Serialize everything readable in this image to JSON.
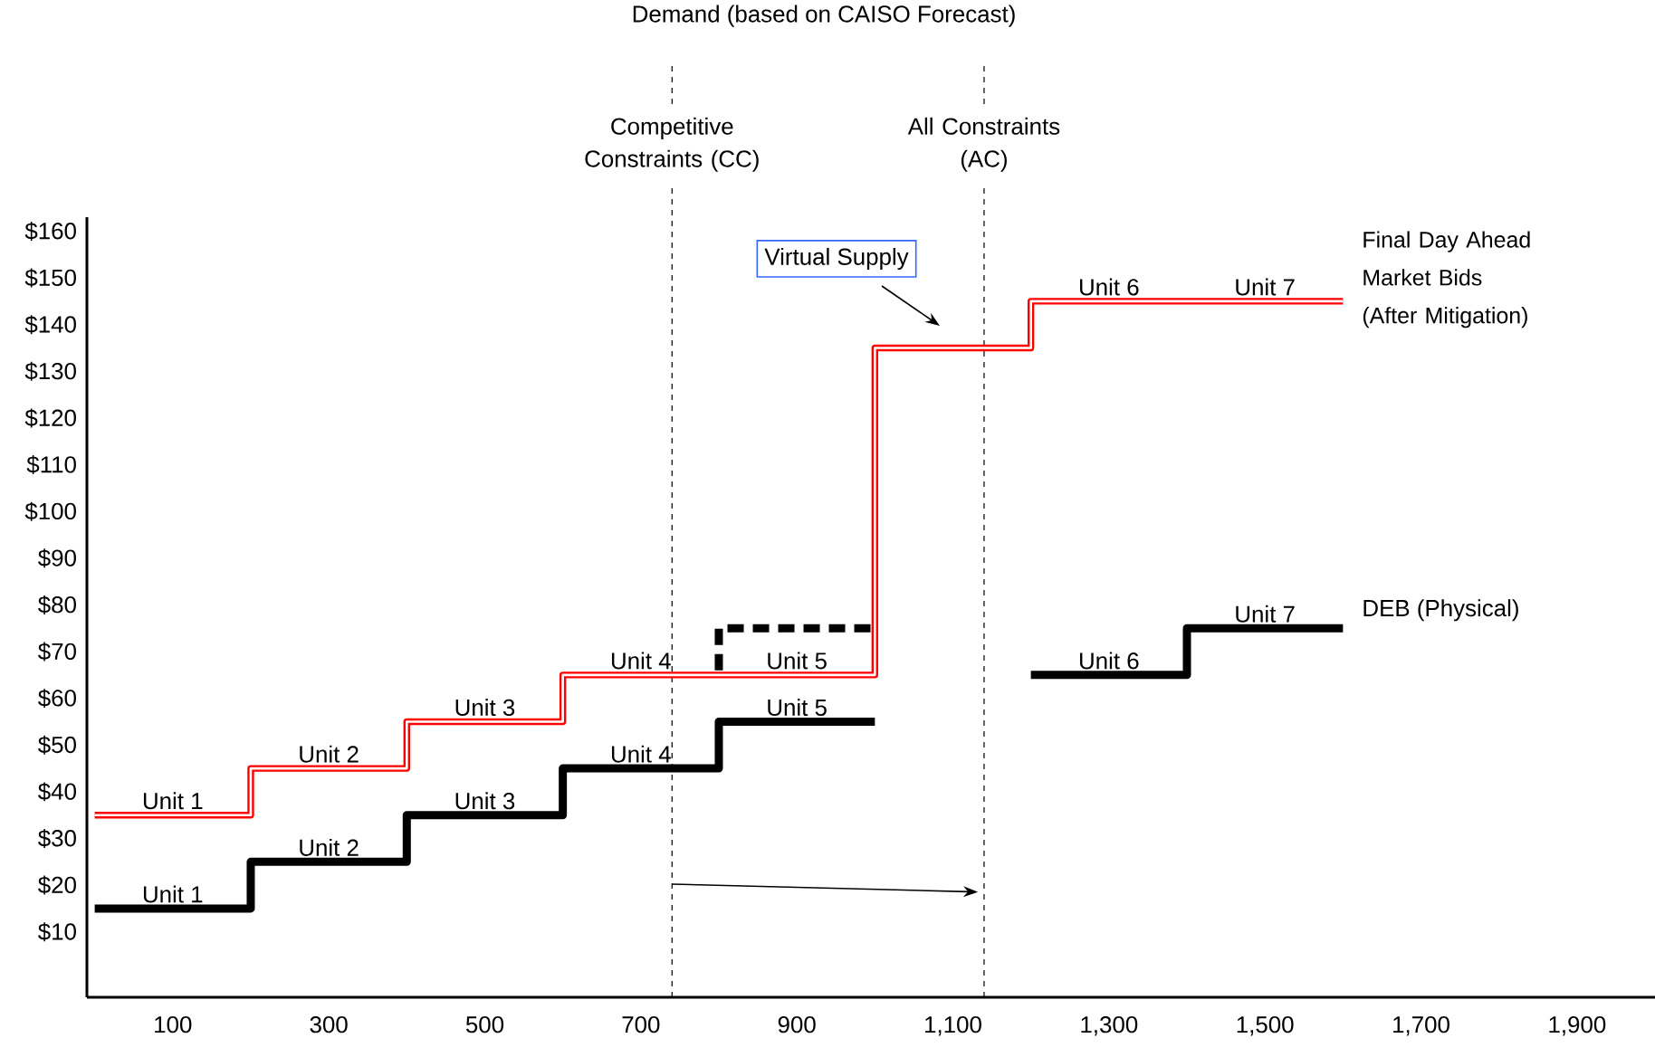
{
  "chart_data": {
    "type": "step",
    "title": "Demand (based on CAISO Forecast)",
    "xlim": [
      -10,
      2000
    ],
    "ylim": [
      -4,
      163
    ],
    "xticks": [
      100,
      300,
      500,
      700,
      900,
      {
        "value": 1100,
        "label": "1,100"
      },
      {
        "value": 1300,
        "label": "1,300"
      },
      {
        "value": 1500,
        "label": "1,500"
      },
      {
        "value": 1700,
        "label": "1,700"
      },
      {
        "value": 1900,
        "label": "1,900"
      }
    ],
    "yticks": [
      {
        "value": 10,
        "label": "$10"
      },
      {
        "value": 20,
        "label": "$20"
      },
      {
        "value": 30,
        "label": "$30"
      },
      {
        "value": 40,
        "label": "$40"
      },
      {
        "value": 50,
        "label": "$50"
      },
      {
        "value": 60,
        "label": "$60"
      },
      {
        "value": 70,
        "label": "$70"
      },
      {
        "value": 80,
        "label": "$80"
      },
      {
        "value": 90,
        "label": "$90"
      },
      {
        "value": 100,
        "label": "$100"
      },
      {
        "value": 110,
        "label": "$110"
      },
      {
        "value": 120,
        "label": "$120"
      },
      {
        "value": 130,
        "label": "$130"
      },
      {
        "value": 140,
        "label": "$140"
      },
      {
        "value": 150,
        "label": "$150"
      },
      {
        "value": 160,
        "label": "$160"
      }
    ],
    "series": [
      {
        "name": "Final Day Ahead Market Bids (After Mitigation)",
        "color": "#ff0000",
        "x": [
          0,
          200,
          400,
          600,
          800,
          1000,
          1200,
          1600
        ],
        "values": [
          35,
          45,
          55,
          65,
          65,
          135,
          145,
          145
        ]
      },
      {
        "color": "#000000",
        "x": [
          0,
          200,
          400,
          600,
          800,
          1000
        ],
        "values": [
          15,
          25,
          35,
          45,
          55,
          55
        ]
      },
      {
        "name": "DEB (Physical)",
        "color": "#000000",
        "x": [
          1200,
          1400,
          1600
        ],
        "values": [
          65,
          75,
          75
        ]
      },
      {
        "color": "#000000",
        "line_style": "dashed",
        "x": [
          800,
          800,
          1000
        ],
        "values": [
          66,
          75,
          75
        ]
      }
    ],
    "ref_lines": [
      {
        "axis": "x",
        "value": 740,
        "label": "Competitive Constraints (CC)",
        "color": "#000000",
        "line_style": "dashed"
      },
      {
        "axis": "x",
        "value": 1140,
        "label": "All Constraints (AC)",
        "color": "#000000",
        "line_style": "dashed"
      }
    ],
    "annotations": [
      "Virtual Supply",
      {
        "text": "Unit 1",
        "x": 100,
        "y": 35
      },
      {
        "text": "Unit 2",
        "x": 300,
        "y": 45
      },
      {
        "text": "Unit 3",
        "x": 500,
        "y": 55
      },
      {
        "text": "Unit 4",
        "x": 700,
        "y": 65
      },
      {
        "text": "Unit 5",
        "x": 900,
        "y": 65
      },
      {
        "text": "Unit 6",
        "x": 1300,
        "y": 145
      },
      {
        "text": "Unit 7",
        "x": 1500,
        "y": 145
      },
      {
        "text": "Unit 1",
        "x": 100,
        "y": 15
      },
      {
        "text": "Unit 2",
        "x": 300,
        "y": 25
      },
      {
        "text": "Unit 3",
        "x": 500,
        "y": 35
      },
      {
        "text": "Unit 4",
        "x": 700,
        "y": 45
      },
      {
        "text": "Unit 5",
        "x": 900,
        "y": 55
      },
      {
        "text": "Unit 6",
        "x": 1300,
        "y": 65
      },
      {
        "text": "Unit 7",
        "x": 1500,
        "y": 75
      }
    ],
    "grid": false,
    "marker": "none"
  }
}
